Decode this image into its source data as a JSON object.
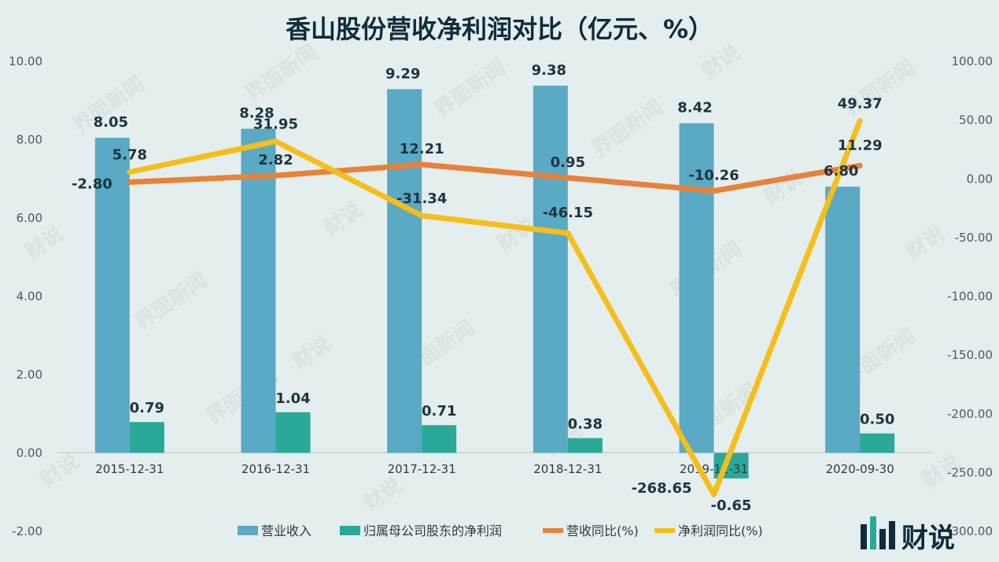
{
  "title": "香山股份营收净利润对比（亿元、%）",
  "colors": {
    "background": "#e4eeee",
    "revenue": "#5aa9c5",
    "profit": "#2aa89a",
    "revenue_yoy": "#e8823a",
    "profit_yoy": "#f5be1a"
  },
  "watermarks": {
    "text1": "界面新闻",
    "text2": "财说"
  },
  "brand": {
    "text": "财说",
    "icon": "bar-logo-icon"
  },
  "chart_data": {
    "type": "bar",
    "categories": [
      "2015-12-31",
      "2016-12-31",
      "2017-12-31",
      "2018-12-31",
      "2019-12-31",
      "2020-09-30"
    ],
    "y_left": {
      "min": -2,
      "max": 10,
      "ticks": [
        "-2.00",
        "0.00",
        "2.00",
        "4.00",
        "6.00",
        "8.00",
        "10.00"
      ]
    },
    "y_right": {
      "min": -300,
      "max": 100,
      "ticks": [
        "-300.00",
        "-250.00",
        "-200.00",
        "-150.00",
        "-100.00",
        "-50.00",
        "0.00",
        "50.00",
        "100.00"
      ]
    },
    "series": [
      {
        "name": "营业收入",
        "kind": "bar",
        "axis": "left",
        "values": [
          8.05,
          8.28,
          9.29,
          9.38,
          8.42,
          6.8
        ],
        "labels": [
          "8.05",
          "8.28",
          "9.29",
          "9.38",
          "8.42",
          "6.80"
        ]
      },
      {
        "name": "归属母公司股东的净利润",
        "kind": "bar",
        "axis": "left",
        "values": [
          0.79,
          1.04,
          0.71,
          0.38,
          -0.65,
          0.5
        ],
        "labels": [
          "0.79",
          "1.04",
          "0.71",
          "0.38",
          "-0.65",
          "0.50"
        ]
      },
      {
        "name": "营收同比(%)",
        "kind": "line",
        "axis": "right",
        "values": [
          -2.8,
          2.82,
          12.21,
          0.95,
          -10.26,
          11.29
        ],
        "labels": [
          "-2.80",
          "2.82",
          "12.21",
          "0.95",
          "-10.26",
          "11.29"
        ]
      },
      {
        "name": "净利润同比(%)",
        "kind": "line",
        "axis": "right",
        "values": [
          5.78,
          31.95,
          -31.34,
          -46.15,
          -268.65,
          49.37
        ],
        "labels": [
          "5.78",
          "31.95",
          "-31.34",
          "-46.15",
          "-268.65",
          "49.37"
        ]
      }
    ],
    "legend_position": "bottom",
    "grid": false
  }
}
